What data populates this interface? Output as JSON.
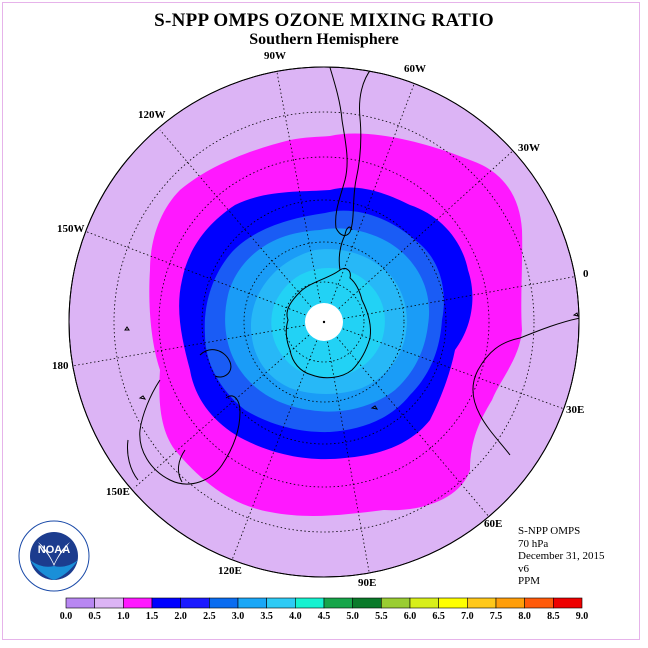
{
  "header": {
    "title": "S-NPP OMPS OZONE MIXING RATIO",
    "subtitle": "Southern Hemisphere"
  },
  "map": {
    "projection": "south-polar-stereographic",
    "longitude_labels": [
      "90W",
      "60W",
      "30W",
      "0",
      "30E",
      "60E",
      "90E",
      "120E",
      "150E",
      "180",
      "150W",
      "120W"
    ]
  },
  "info": {
    "instrument": "S-NPP OMPS",
    "level": "70 hPa",
    "date": "December 31, 2015",
    "version": "v6",
    "units": "PPM"
  },
  "colorbar": {
    "ticks": [
      "0.0",
      "0.5",
      "1.0",
      "1.5",
      "2.0",
      "2.5",
      "3.0",
      "3.5",
      "4.0",
      "4.5",
      "5.0",
      "5.5",
      "6.0",
      "6.5",
      "7.0",
      "7.5",
      "8.0",
      "8.5",
      "9.0"
    ],
    "colors": [
      "#b887f2",
      "#dcb4f5",
      "#ff18ff",
      "#0000ff",
      "#1a1aff",
      "#0a6cf0",
      "#1aa7f7",
      "#2ecbf5",
      "#16f2d0",
      "#17a54a",
      "#0a7a2a",
      "#9acd32",
      "#d8ef1a",
      "#ffff00",
      "#ffc81a",
      "#ff9e0a",
      "#ff5a0a",
      "#ee0000",
      "#8b5a3c"
    ]
  },
  "logo": {
    "text": "NOAA"
  },
  "colors": {
    "ocean_bg": "#dcb4f5",
    "level_1_0": "#ff18ff",
    "level_1_5": "#0000ff",
    "level_2_0": "#1a5cf5",
    "level_2_5": "#1a9cf7",
    "level_3_0": "#27b8f7",
    "level_3_5": "#22d2f5"
  }
}
